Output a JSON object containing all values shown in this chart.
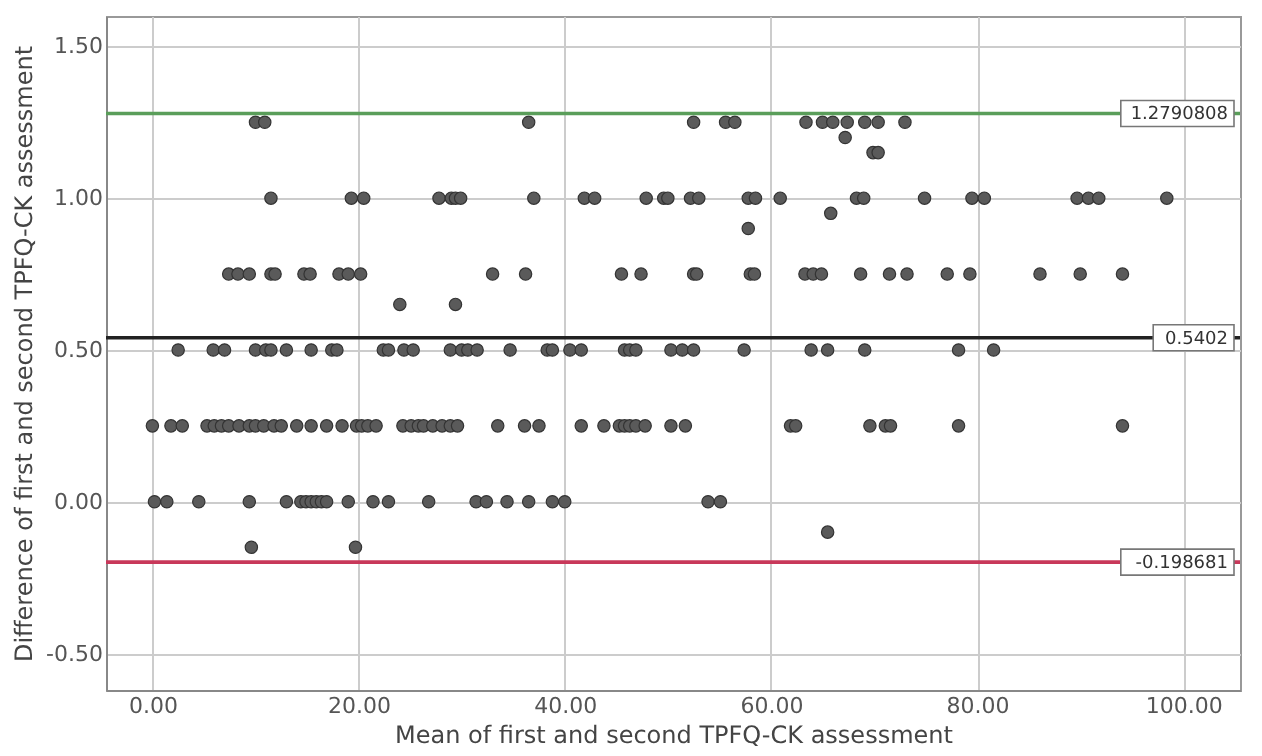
{
  "chart_data": {
    "type": "scatter",
    "xlabel": "Mean of first and second TPFQ-CK assessment",
    "ylabel": "Difference of first and second TPFQ-CK assessment",
    "xlim": [
      -4.5,
      105.5
    ],
    "ylim": [
      -0.62,
      1.6
    ],
    "xticks": [
      {
        "value": 0,
        "label": "0.00"
      },
      {
        "value": 20,
        "label": "20.00"
      },
      {
        "value": 40,
        "label": "40.00"
      },
      {
        "value": 60,
        "label": "60.00"
      },
      {
        "value": 80,
        "label": "80.00"
      },
      {
        "value": 100,
        "label": "100.00"
      }
    ],
    "yticks": [
      {
        "value": -0.5,
        "label": "-0.50"
      },
      {
        "value": 0,
        "label": "0.00"
      },
      {
        "value": 0.5,
        "label": "0.50"
      },
      {
        "value": 1,
        "label": "1.00"
      },
      {
        "value": 1.5,
        "label": "1.50"
      }
    ],
    "grid": true,
    "marker": "circle",
    "series": [
      {
        "color": "#5a5a5a",
        "x": [
          10.0,
          10.9,
          36.5,
          52.5,
          55.6,
          56.5,
          63.4,
          65.0,
          66.0,
          67.4,
          69.1,
          70.4,
          73.0,
          67.2,
          69.9,
          70.4,
          11.5,
          19.3,
          20.5,
          27.8,
          29.0,
          29.4,
          29.9,
          37.0,
          41.9,
          42.9,
          47.9,
          49.6,
          50.0,
          52.2,
          53.0,
          57.8,
          58.5,
          60.9,
          68.3,
          69.0,
          74.9,
          79.5,
          80.7,
          89.7,
          90.8,
          91.8,
          98.4,
          57.8,
          65.8,
          7.4,
          8.3,
          9.4,
          11.5,
          11.9,
          14.7,
          15.3,
          18.1,
          19.0,
          20.2,
          33.0,
          36.2,
          45.5,
          47.4,
          52.5,
          52.8,
          58.0,
          58.4,
          63.3,
          64.1,
          64.9,
          68.7,
          71.5,
          73.2,
          77.1,
          79.3,
          86.1,
          90.0,
          94.1,
          24.0,
          29.4,
          2.5,
          5.9,
          7.0,
          10.0,
          11.0,
          11.5,
          13.0,
          15.4,
          17.4,
          17.9,
          22.4,
          22.9,
          24.4,
          25.3,
          28.9,
          30.0,
          30.6,
          31.5,
          34.7,
          38.3,
          38.8,
          40.5,
          41.6,
          45.8,
          46.3,
          46.9,
          50.3,
          51.4,
          52.5,
          57.4,
          63.9,
          65.5,
          69.1,
          78.2,
          81.6,
          0,
          1.8,
          2.9,
          5.3,
          6.0,
          6.7,
          7.4,
          8.4,
          9.4,
          10.0,
          10.8,
          11.8,
          12.5,
          14.0,
          15.4,
          16.9,
          18.4,
          19.8,
          20.3,
          20.9,
          21.7,
          24.3,
          25.1,
          25.8,
          26.3,
          27.2,
          28.1,
          28.9,
          29.6,
          33.5,
          36.1,
          37.5,
          41.6,
          43.8,
          45.3,
          45.8,
          46.3,
          46.9,
          47.8,
          50.3,
          51.7,
          61.9,
          62.4,
          69.6,
          71.1,
          71.6,
          78.2,
          94.1,
          0.2,
          1.4,
          4.5,
          9.4,
          13.0,
          14.4,
          14.9,
          15.4,
          15.9,
          16.4,
          16.9,
          19.0,
          21.4,
          22.9,
          26.8,
          31.4,
          32.4,
          34.4,
          36.5,
          38.8,
          40.0,
          53.9,
          55.1,
          9.6,
          19.7,
          65.5
        ],
        "values": [
          1.25,
          1.25,
          1.25,
          1.25,
          1.25,
          1.25,
          1.25,
          1.25,
          1.25,
          1.25,
          1.25,
          1.25,
          1.25,
          1.2,
          1.15,
          1.15,
          1,
          1,
          1,
          1,
          1,
          1,
          1,
          1,
          1,
          1,
          1,
          1,
          1,
          1,
          1,
          1,
          1,
          1,
          1,
          1,
          1,
          1,
          1,
          1,
          1,
          1,
          1,
          0.9,
          0.95,
          0.75,
          0.75,
          0.75,
          0.75,
          0.75,
          0.75,
          0.75,
          0.75,
          0.75,
          0.75,
          0.75,
          0.75,
          0.75,
          0.75,
          0.75,
          0.75,
          0.75,
          0.75,
          0.75,
          0.75,
          0.75,
          0.75,
          0.75,
          0.75,
          0.75,
          0.75,
          0.75,
          0.75,
          0.75,
          0.65,
          0.65,
          0.5,
          0.5,
          0.5,
          0.5,
          0.5,
          0.5,
          0.5,
          0.5,
          0.5,
          0.5,
          0.5,
          0.5,
          0.5,
          0.5,
          0.5,
          0.5,
          0.5,
          0.5,
          0.5,
          0.5,
          0.5,
          0.5,
          0.5,
          0.5,
          0.5,
          0.5,
          0.5,
          0.5,
          0.5,
          0.5,
          0.5,
          0.5,
          0.5,
          0.5,
          0.5,
          0.25,
          0.25,
          0.25,
          0.25,
          0.25,
          0.25,
          0.25,
          0.25,
          0.25,
          0.25,
          0.25,
          0.25,
          0.25,
          0.25,
          0.25,
          0.25,
          0.25,
          0.25,
          0.25,
          0.25,
          0.25,
          0.25,
          0.25,
          0.25,
          0.25,
          0.25,
          0.25,
          0.25,
          0.25,
          0.25,
          0.25,
          0.25,
          0.25,
          0.25,
          0.25,
          0.25,
          0.25,
          0.25,
          0.25,
          0.25,
          0.25,
          0.25,
          0.25,
          0.25,
          0.25,
          0.25,
          0.25,
          0.25,
          0,
          0,
          0,
          0,
          0,
          0,
          0,
          0,
          0,
          0,
          0,
          0,
          0,
          0,
          0,
          0,
          0,
          0,
          0,
          0,
          0,
          0,
          0,
          -0.15,
          -0.15,
          -0.1
        ]
      }
    ],
    "ref_lines": [
      {
        "axis": "y",
        "value": 1.2790808,
        "label": "1.2790808",
        "color": "#5a9e5a"
      },
      {
        "axis": "y",
        "value": 0.5402,
        "label": "0.5402",
        "color": "#222222"
      },
      {
        "axis": "y",
        "value": -0.198681,
        "label": "-0.198681",
        "color": "#c8385a"
      }
    ]
  }
}
